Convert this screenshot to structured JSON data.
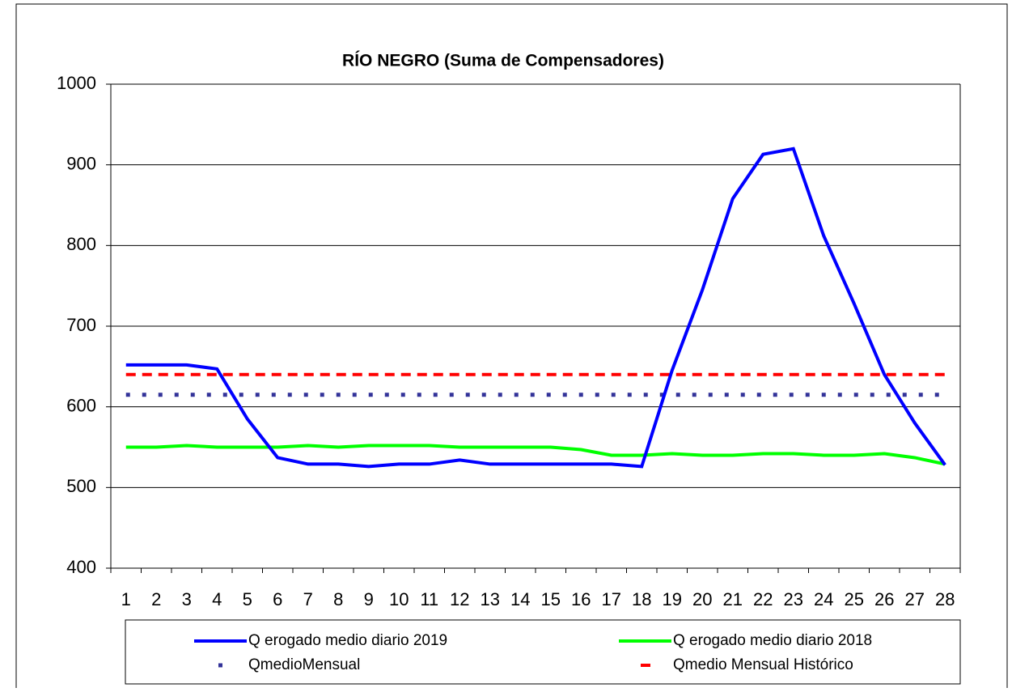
{
  "chart_data": {
    "type": "line",
    "title": "RÍO NEGRO (Suma de Compensadores)",
    "categories": [
      "1",
      "2",
      "3",
      "4",
      "5",
      "6",
      "7",
      "8",
      "9",
      "10",
      "11",
      "12",
      "13",
      "14",
      "15",
      "16",
      "17",
      "18",
      "19",
      "20",
      "21",
      "22",
      "23",
      "24",
      "25",
      "26",
      "27",
      "28"
    ],
    "series": [
      {
        "name": "Q erogado medio diario 2019",
        "color": "#0000ff",
        "style": "solid",
        "values": [
          652,
          652,
          652,
          647,
          585,
          537,
          529,
          529,
          526,
          529,
          529,
          534,
          529,
          529,
          529,
          529,
          529,
          526,
          645,
          745,
          858,
          913,
          920,
          812,
          728,
          640,
          580,
          528
        ]
      },
      {
        "name": "Q erogado medio diario 2018",
        "color": "#00ff00",
        "style": "solid",
        "values": [
          550,
          550,
          552,
          550,
          550,
          550,
          552,
          550,
          552,
          552,
          552,
          550,
          550,
          550,
          550,
          547,
          540,
          540,
          542,
          540,
          540,
          542,
          542,
          540,
          540,
          542,
          537,
          529
        ]
      },
      {
        "name": "QmedioMensual",
        "color": "#333399",
        "style": "dotted",
        "values": [
          615,
          615,
          615,
          615,
          615,
          615,
          615,
          615,
          615,
          615,
          615,
          615,
          615,
          615,
          615,
          615,
          615,
          615,
          615,
          615,
          615,
          615,
          615,
          615,
          615,
          615,
          615,
          615
        ]
      },
      {
        "name": "Qmedio Mensual Histórico",
        "color": "#ff0000",
        "style": "dashed",
        "values": [
          640,
          640,
          640,
          640,
          640,
          640,
          640,
          640,
          640,
          640,
          640,
          640,
          640,
          640,
          640,
          640,
          640,
          640,
          640,
          640,
          640,
          640,
          640,
          640,
          640,
          640,
          640,
          640
        ]
      }
    ],
    "ylim": [
      400,
      1000
    ],
    "yticks": [
      400,
      500,
      600,
      700,
      800,
      900,
      1000
    ],
    "grid": true
  }
}
